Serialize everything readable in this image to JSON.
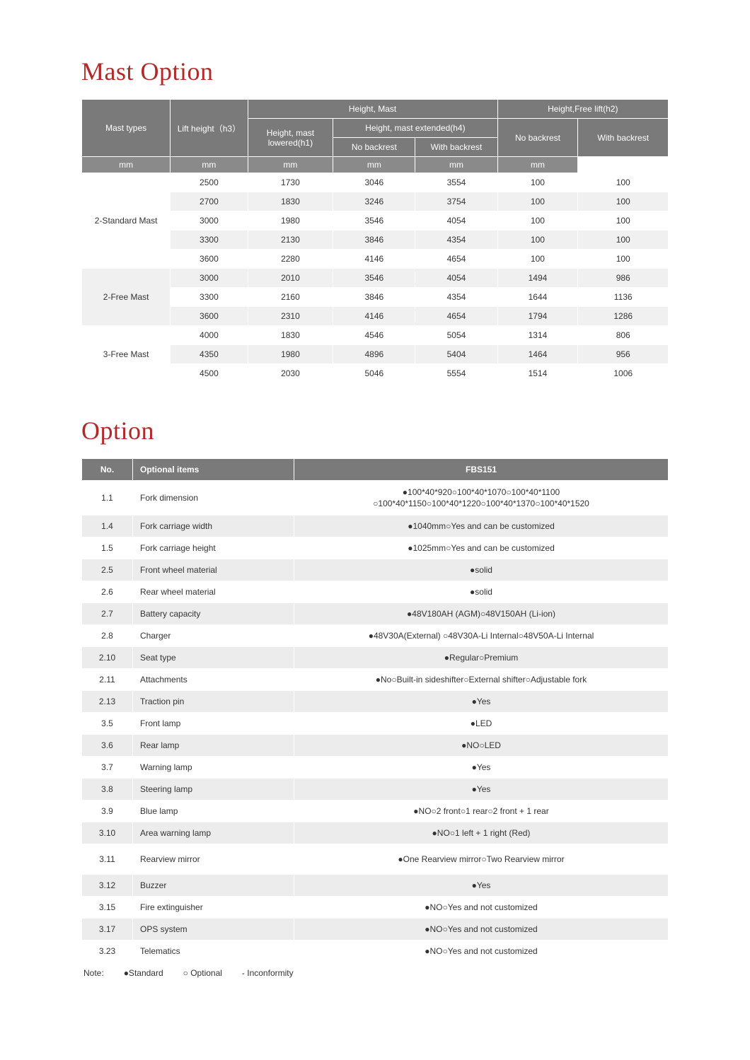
{
  "mast": {
    "title": "Mast Option",
    "headers": {
      "mast_types": "Mast types",
      "lift_height": "Lift height（h3）",
      "height_mast": "Height, Mast",
      "height_lowered": "Height, mast lowered(h1)",
      "height_extended": "Height, mast extended(h4)",
      "no_backrest": "No backrest",
      "with_backrest": "With backrest",
      "free_lift": "Height,Free lift(h2)",
      "no_backrest2": "No backrest",
      "with_backrest2": "With backrest"
    },
    "units": {
      "u1": "mm",
      "u2": "mm",
      "u3": "mm",
      "u4": "mm",
      "u5": "mm",
      "u6": "mm"
    },
    "groups": [
      {
        "label": "2-Standard Mast",
        "rows": [
          {
            "c": [
              "2500",
              "1730",
              "3046",
              "3554",
              "100",
              "100"
            ],
            "even": false
          },
          {
            "c": [
              "2700",
              "1830",
              "3246",
              "3754",
              "100",
              "100"
            ],
            "even": true
          },
          {
            "c": [
              "3000",
              "1980",
              "3546",
              "4054",
              "100",
              "100"
            ],
            "even": false
          },
          {
            "c": [
              "3300",
              "2130",
              "3846",
              "4354",
              "100",
              "100"
            ],
            "even": true
          },
          {
            "c": [
              "3600",
              "2280",
              "4146",
              "4654",
              "100",
              "100"
            ],
            "even": false
          }
        ]
      },
      {
        "label": "2-Free Mast",
        "rows": [
          {
            "c": [
              "3000",
              "2010",
              "3546",
              "4054",
              "1494",
              "986"
            ],
            "even": true
          },
          {
            "c": [
              "3300",
              "2160",
              "3846",
              "4354",
              "1644",
              "1136"
            ],
            "even": false
          },
          {
            "c": [
              "3600",
              "2310",
              "4146",
              "4654",
              "1794",
              "1286"
            ],
            "even": true
          }
        ]
      },
      {
        "label": "3-Free Mast",
        "rows": [
          {
            "c": [
              "4000",
              "1830",
              "4546",
              "5054",
              "1314",
              "806"
            ],
            "even": false
          },
          {
            "c": [
              "4350",
              "1980",
              "4896",
              "5404",
              "1464",
              "956"
            ],
            "even": true
          },
          {
            "c": [
              "4500",
              "2030",
              "5046",
              "5554",
              "1514",
              "1006"
            ],
            "even": false
          }
        ]
      }
    ]
  },
  "option": {
    "title": "Option",
    "headers": {
      "no": "No.",
      "items": "Optional items",
      "model": "FBS151"
    },
    "rows": [
      {
        "no": "1.1",
        "item": "Fork dimension",
        "val": "●100*40*920○100*40*1070○100*40*1100\n○100*40*1150○100*40*1220○100*40*1370○100*40*1520",
        "alt": false,
        "multiline": true
      },
      {
        "no": "1.4",
        "item": "Fork carriage width",
        "val": "●1040mm○Yes and can be customized",
        "alt": true
      },
      {
        "no": "1.5",
        "item": "Fork carriage height",
        "val": "●1025mm○Yes and can be customized",
        "alt": false
      },
      {
        "no": "2.5",
        "item": "Front wheel material",
        "val": "●solid",
        "alt": true
      },
      {
        "no": "2.6",
        "item": "Rear wheel material",
        "val": "●solid",
        "alt": false
      },
      {
        "no": "2.7",
        "item": "Battery capacity",
        "val": "●48V180AH (AGM)○48V150AH (Li-ion)",
        "alt": true
      },
      {
        "no": "2.8",
        "item": "Charger",
        "val": "●48V30A(External)  ○48V30A-Li Internal○48V50A-Li Internal",
        "alt": false
      },
      {
        "no": "2.10",
        "item": "Seat type",
        "val": "●Regular○Premium",
        "alt": true
      },
      {
        "no": "2.11",
        "item": "Attachments",
        "val": "●No○Built-in sideshifter○External shifter○Adjustable fork",
        "alt": false
      },
      {
        "no": "2.13",
        "item": "Traction pin",
        "val": "●Yes",
        "alt": true
      },
      {
        "no": "3.5",
        "item": "Front lamp",
        "val": "●LED",
        "alt": false
      },
      {
        "no": "3.6",
        "item": "Rear lamp",
        "val": "●NO○LED",
        "alt": true
      },
      {
        "no": "3.7",
        "item": "Warning lamp",
        "val": "●Yes",
        "alt": false
      },
      {
        "no": "3.8",
        "item": "Steering lamp",
        "val": "●Yes",
        "alt": true
      },
      {
        "no": "3.9",
        "item": "Blue lamp",
        "val": "●NO○2 front○1 rear○2 front + 1 rear",
        "alt": false
      },
      {
        "no": "3.10",
        "item": "Area warning lamp",
        "val": "●NO○1 left + 1 right (Red)",
        "alt": true
      },
      {
        "no": "3.11",
        "item": "Rearview mirror",
        "val": "●One Rearview mirror○Two Rearview mirror",
        "alt": false,
        "tall": true
      },
      {
        "no": "3.12",
        "item": "Buzzer",
        "val": "●Yes",
        "alt": true
      },
      {
        "no": "3.15",
        "item": "Fire extinguisher",
        "val": "●NO○Yes and not customized",
        "alt": false
      },
      {
        "no": "3.17",
        "item": "OPS system",
        "val": "●NO○Yes and not customized",
        "alt": true
      },
      {
        "no": "3.23",
        "item": "Telematics",
        "val": "●NO○Yes and not customized",
        "alt": false
      }
    ],
    "note": {
      "label": "Note:",
      "std": "●Standard",
      "opt": "○ Optional",
      "inc": "- Inconformity"
    }
  },
  "colors": {
    "title": "#b12a2a",
    "header_bg": "#7a7a7a",
    "units_bg": "#8a8a8a",
    "row_alt": "#ececec"
  }
}
